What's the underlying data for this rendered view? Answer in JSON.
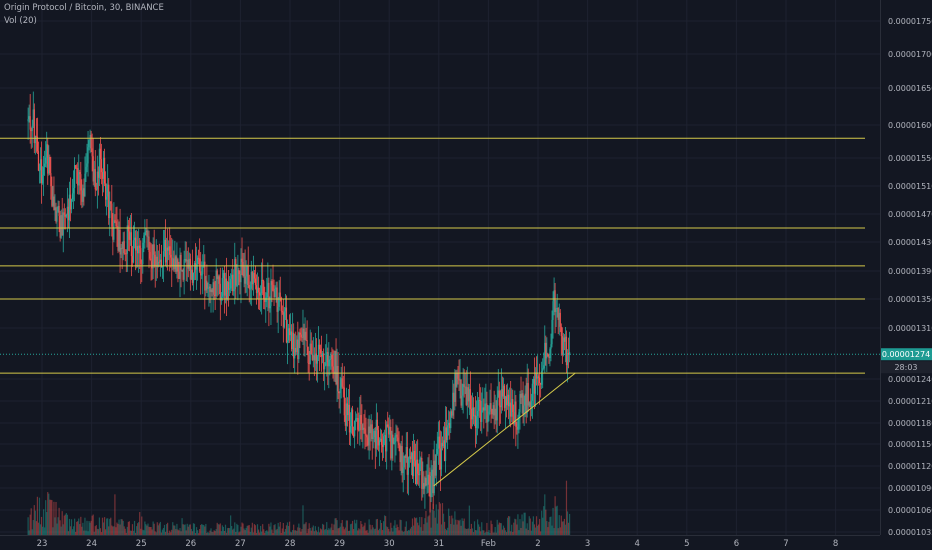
{
  "header": {
    "title": "Origin Protocol / Bitcoin, 30, BINANCE",
    "volume_label": "Vol (20)"
  },
  "colors": {
    "background": "#131722",
    "grid": "#1e2230",
    "up": "#26a69a",
    "down": "#ef5350",
    "level_line": "#d4c94a",
    "price_tag": "#1e9b93",
    "countdown_tag": "#1e222d",
    "text": "#b2b5be"
  },
  "chart_data": {
    "type": "candlestick",
    "title": "Origin Protocol / Bitcoin, 30, BINANCE",
    "symbol": "Origin Protocol / Bitcoin",
    "interval": "30",
    "exchange": "BINANCE",
    "volume_indicator": "Vol (20)",
    "x_ticks": [
      "23",
      "24",
      "25",
      "26",
      "27",
      "28",
      "29",
      "30",
      "31",
      "Feb",
      "2",
      "3",
      "4",
      "5",
      "6",
      "7",
      "8"
    ],
    "y_ticks": [
      "0.00001750",
      "0.00001700",
      "0.00001650",
      "0.00001600",
      "0.00001550",
      "0.00001510",
      "0.00001470",
      "0.00001430",
      "0.00001390",
      "0.00001350",
      "0.00001310",
      "0.00001240",
      "0.00001210",
      "0.00001180",
      "0.00001150",
      "0.00001120",
      "0.00001090",
      "0.00001060",
      "0.00001032"
    ],
    "last_price": "0.00001274",
    "countdown": "28:03",
    "horizontal_levels": [
      1.58e-05,
      1.45e-05,
      1.397e-05,
      1.35e-05,
      1.248e-05
    ],
    "trendline": {
      "from": {
        "day": 30.9,
        "price": 1.093e-05
      },
      "to": {
        "day": 33.75,
        "price": 1.248e-05
      }
    },
    "price_path": [
      [
        22.72,
        1.605e-05
      ],
      [
        22.85,
        1.6e-05
      ],
      [
        23.0,
        1.53e-05
      ],
      [
        23.12,
        1.56e-05
      ],
      [
        23.25,
        1.48e-05
      ],
      [
        23.4,
        1.455e-05
      ],
      [
        23.55,
        1.48e-05
      ],
      [
        23.7,
        1.54e-05
      ],
      [
        23.85,
        1.5e-05
      ],
      [
        24.0,
        1.57e-05
      ],
      [
        24.1,
        1.5e-05
      ],
      [
        24.2,
        1.555e-05
      ],
      [
        24.4,
        1.47e-05
      ],
      [
        24.5,
        1.44e-05
      ],
      [
        24.6,
        1.42e-05
      ],
      [
        24.75,
        1.435e-05
      ],
      [
        24.95,
        1.41e-05
      ],
      [
        25.1,
        1.43e-05
      ],
      [
        25.3,
        1.41e-05
      ],
      [
        25.5,
        1.42e-05
      ],
      [
        25.7,
        1.405e-05
      ],
      [
        25.9,
        1.395e-05
      ],
      [
        26.1,
        1.39e-05
      ],
      [
        26.3,
        1.38e-05
      ],
      [
        26.5,
        1.375e-05
      ],
      [
        26.7,
        1.365e-05
      ],
      [
        26.9,
        1.385e-05
      ],
      [
        27.1,
        1.39e-05
      ],
      [
        27.25,
        1.375e-05
      ],
      [
        27.45,
        1.365e-05
      ],
      [
        27.65,
        1.355e-05
      ],
      [
        27.85,
        1.345e-05
      ],
      [
        28.0,
        1.295e-05
      ],
      [
        28.1,
        1.285e-05
      ],
      [
        28.3,
        1.29e-05
      ],
      [
        28.5,
        1.27e-05
      ],
      [
        28.7,
        1.26e-05
      ],
      [
        28.9,
        1.262e-05
      ],
      [
        29.05,
        1.23e-05
      ],
      [
        29.15,
        1.19e-05
      ],
      [
        29.3,
        1.18e-05
      ],
      [
        29.5,
        1.175e-05
      ],
      [
        29.7,
        1.165e-05
      ],
      [
        29.9,
        1.16e-05
      ],
      [
        30.1,
        1.15e-05
      ],
      [
        30.3,
        1.13e-05
      ],
      [
        30.5,
        1.12e-05
      ],
      [
        30.65,
        1.11e-05
      ],
      [
        30.8,
        1.1e-05
      ],
      [
        30.9,
        1.095e-05
      ],
      [
        31.0,
        1.14e-05
      ],
      [
        31.1,
        1.135e-05
      ],
      [
        31.2,
        1.17e-05
      ],
      [
        31.35,
        1.23e-05
      ],
      [
        31.5,
        1.22e-05
      ],
      [
        31.65,
        1.21e-05
      ],
      [
        31.8,
        1.19e-05
      ],
      [
        31.95,
        1.185e-05
      ],
      [
        32.1,
        1.2e-05
      ],
      [
        32.3,
        1.215e-05
      ],
      [
        32.45,
        1.2e-05
      ],
      [
        32.6,
        1.19e-05
      ],
      [
        32.8,
        1.215e-05
      ],
      [
        32.95,
        1.23e-05
      ],
      [
        33.1,
        1.255e-05
      ],
      [
        33.25,
        1.29e-05
      ],
      [
        33.35,
        1.345e-05
      ],
      [
        33.45,
        1.31e-05
      ],
      [
        33.55,
        1.285e-05
      ],
      [
        33.65,
        1.275e-05
      ]
    ],
    "volume_profile": [
      [
        22.72,
        0.4
      ],
      [
        23.0,
        0.9
      ],
      [
        23.3,
        0.5
      ],
      [
        23.7,
        0.3
      ],
      [
        24.0,
        0.35
      ],
      [
        24.4,
        0.3
      ],
      [
        24.8,
        0.25
      ],
      [
        25.2,
        0.25
      ],
      [
        25.6,
        0.2
      ],
      [
        26.0,
        0.2
      ],
      [
        26.5,
        0.2
      ],
      [
        27.0,
        0.25
      ],
      [
        27.5,
        0.2
      ],
      [
        28.0,
        0.25
      ],
      [
        28.5,
        0.2
      ],
      [
        29.0,
        0.3
      ],
      [
        29.5,
        0.25
      ],
      [
        30.0,
        0.35
      ],
      [
        30.5,
        0.3
      ],
      [
        31.0,
        0.6
      ],
      [
        31.5,
        0.3
      ],
      [
        32.0,
        0.25
      ],
      [
        32.5,
        0.35
      ],
      [
        33.0,
        0.4
      ],
      [
        33.3,
        0.7
      ],
      [
        33.65,
        0.5
      ]
    ]
  }
}
